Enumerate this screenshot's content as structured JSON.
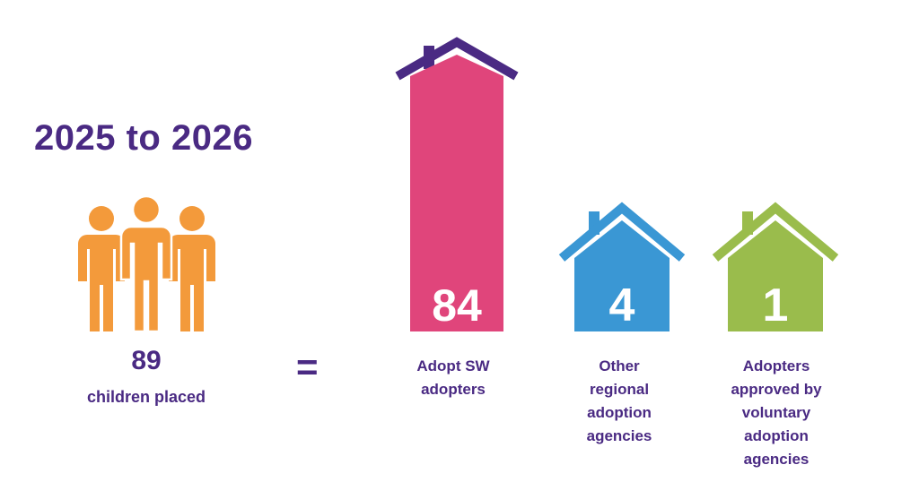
{
  "header": {
    "title": "2025 to 2026"
  },
  "summary": {
    "total": "89",
    "label": "children placed",
    "equals": "="
  },
  "colors": {
    "purple": "#4a2a83",
    "orange": "#f39a3b",
    "pink": "#e0457b",
    "blue": "#3a97d4",
    "green": "#9abc4c"
  },
  "chart_data": {
    "type": "bar",
    "title": "2025 to 2026",
    "total": 89,
    "categories": [
      "Adopt SW adopters",
      "Other regional adoption agencies",
      "Adopters approved by voluntary adoption agencies"
    ],
    "values": [
      84,
      4,
      1
    ],
    "labels": [
      "84",
      "4",
      "1"
    ],
    "colors": [
      "#e0457b",
      "#3a97d4",
      "#9abc4c"
    ]
  },
  "categories_display": [
    {
      "lines": "Adopt SW\nadopters"
    },
    {
      "lines": "Other\nregional\nadoption\nagencies"
    },
    {
      "lines": "Adopters\napproved by\nvoluntary\nadoption\nagencies"
    }
  ]
}
